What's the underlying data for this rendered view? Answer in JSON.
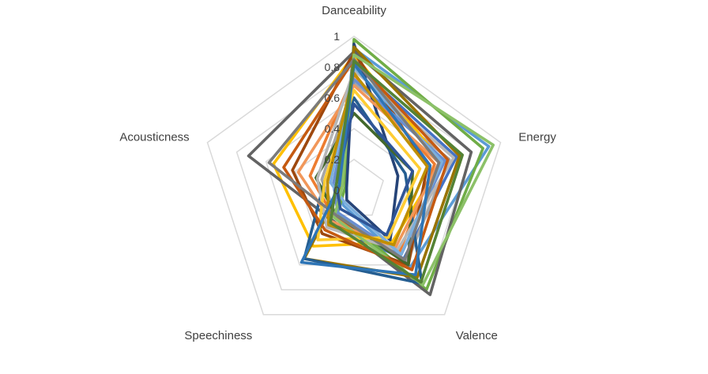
{
  "chart_data": {
    "type": "radar",
    "title": "",
    "axes": [
      "Danceability",
      "Energy",
      "Valence",
      "Speechiness",
      "Acousticness"
    ],
    "ticks": [
      "0",
      "0.2",
      "0.4",
      "0.6",
      "0.8",
      "1"
    ],
    "rlim": [
      0,
      1
    ],
    "grid": true,
    "legend": "none",
    "series": [
      {
        "color": "#4472c4",
        "values": [
          0.82,
          0.7,
          0.55,
          0.28,
          0.12
        ]
      },
      {
        "color": "#ed7d31",
        "values": [
          0.75,
          0.55,
          0.5,
          0.22,
          0.3
        ]
      },
      {
        "color": "#a5a5a5",
        "values": [
          0.7,
          0.65,
          0.58,
          0.2,
          0.22
        ]
      },
      {
        "color": "#ffc000",
        "values": [
          0.88,
          0.6,
          0.42,
          0.45,
          0.55
        ]
      },
      {
        "color": "#5b9bd5",
        "values": [
          0.92,
          0.92,
          0.62,
          0.12,
          0.1
        ]
      },
      {
        "color": "#70ad47",
        "values": [
          0.98,
          0.88,
          0.8,
          0.18,
          0.06
        ]
      },
      {
        "color": "#264478",
        "values": [
          0.95,
          0.3,
          0.4,
          0.08,
          0.05
        ]
      },
      {
        "color": "#9e480e",
        "values": [
          0.9,
          0.5,
          0.6,
          0.35,
          0.42
        ]
      },
      {
        "color": "#636363",
        "values": [
          0.9,
          0.8,
          0.84,
          0.24,
          0.72
        ]
      },
      {
        "color": "#997300",
        "values": [
          0.93,
          0.72,
          0.7,
          0.55,
          0.08
        ]
      },
      {
        "color": "#255e91",
        "values": [
          0.6,
          0.35,
          0.75,
          0.55,
          0.2
        ]
      },
      {
        "color": "#43682b",
        "values": [
          0.5,
          0.4,
          0.6,
          0.2,
          0.26
        ]
      },
      {
        "color": "#698ed0",
        "values": [
          0.72,
          0.62,
          0.52,
          0.18,
          0.14
        ]
      },
      {
        "color": "#f1975a",
        "values": [
          0.68,
          0.58,
          0.46,
          0.25,
          0.38
        ]
      },
      {
        "color": "#b7b7b7",
        "values": [
          0.78,
          0.68,
          0.48,
          0.3,
          0.25
        ]
      },
      {
        "color": "#ffcd33",
        "values": [
          0.65,
          0.45,
          0.38,
          0.4,
          0.2
        ]
      },
      {
        "color": "#7cafdd",
        "values": [
          0.8,
          0.6,
          0.52,
          0.1,
          0.16
        ]
      },
      {
        "color": "#8cc168",
        "values": [
          0.88,
          0.95,
          0.76,
          0.22,
          0.08
        ]
      },
      {
        "color": "#2f5597",
        "values": [
          0.56,
          0.4,
          0.36,
          0.15,
          0.12
        ]
      },
      {
        "color": "#c55a11",
        "values": [
          0.85,
          0.64,
          0.64,
          0.32,
          0.48
        ]
      },
      {
        "color": "#7b7b7b",
        "values": [
          0.85,
          0.58,
          0.56,
          0.2,
          0.58
        ]
      },
      {
        "color": "#bf8f00",
        "values": [
          0.76,
          0.5,
          0.44,
          0.28,
          0.18
        ]
      },
      {
        "color": "#2e75b6",
        "values": [
          0.82,
          0.52,
          0.68,
          0.58,
          0.1
        ]
      },
      {
        "color": "#548235",
        "values": [
          0.84,
          0.74,
          0.74,
          0.26,
          0.12
        ]
      }
    ]
  }
}
